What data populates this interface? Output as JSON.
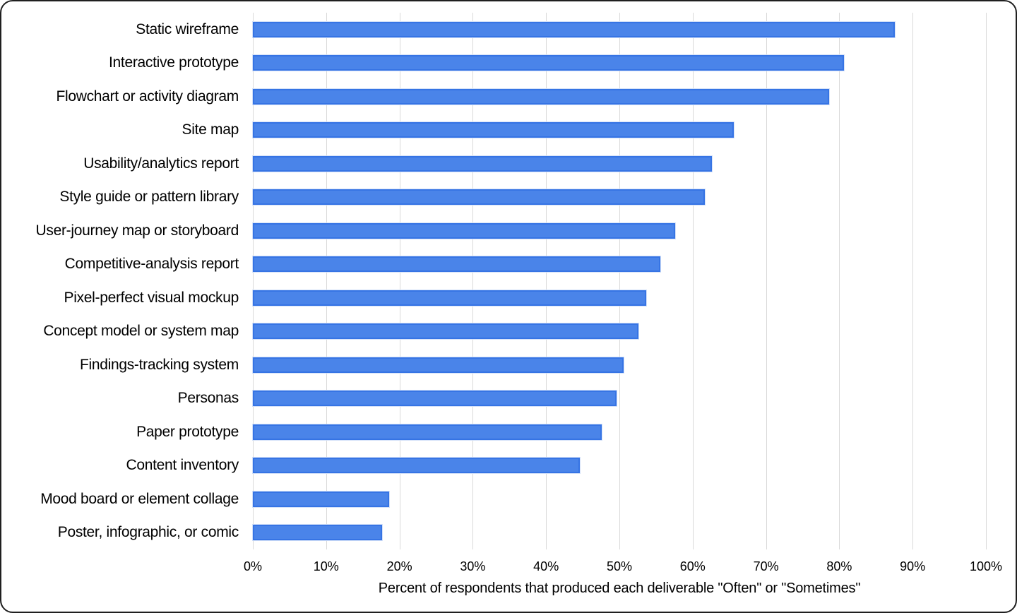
{
  "chart_data": {
    "type": "bar",
    "orientation": "horizontal",
    "title": "",
    "xlabel": "Percent of respondents that produced each deliverable \"Often\" or \"Sometimes\"",
    "ylabel": "",
    "xlim": [
      0,
      100
    ],
    "grid": true,
    "legend": false,
    "x_ticks": [
      "0%",
      "10%",
      "20%",
      "30%",
      "40%",
      "50%",
      "60%",
      "70%",
      "80%",
      "90%",
      "100%"
    ],
    "categories": [
      "Static wireframe",
      "Interactive prototype",
      "Flowchart or activity diagram",
      "Site map",
      "Usability/analytics report",
      "Style guide or pattern library",
      "User-journey map or storyboard",
      "Competitive-analysis report",
      "Pixel-perfect visual mockup",
      "Concept model or system map",
      "Findings-tracking system",
      "Personas",
      "Paper prototype",
      "Content inventory",
      "Mood board or element collage",
      "Poster, infographic, or comic"
    ],
    "values": [
      88,
      81,
      79,
      66,
      63,
      62,
      58,
      56,
      54,
      53,
      51,
      50,
      48,
      45,
      19,
      18
    ],
    "colors": {
      "bar_fill": "#4a84e9",
      "bar_border": "#3674e4",
      "gridline": "#d9d9d9",
      "text": "#000000",
      "background": "#ffffff"
    }
  }
}
